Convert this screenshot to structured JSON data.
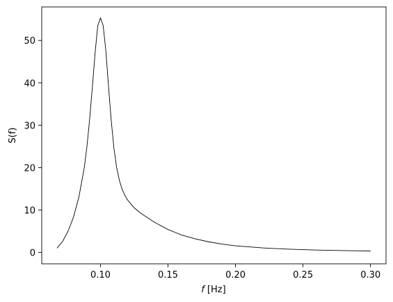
{
  "chart_data": {
    "type": "line",
    "title": "",
    "xlabel_var": "f",
    "xlabel_unit": "[Hz]",
    "ylabel_var": "S(f)",
    "xlim": [
      0.0565,
      0.3115
    ],
    "ylim": [
      -2.7,
      57.9
    ],
    "xticks": [
      0.1,
      0.15,
      0.2,
      0.25,
      0.3
    ],
    "xtick_labels": [
      "0.10",
      "0.15",
      "0.20",
      "0.25",
      "0.30"
    ],
    "yticks": [
      0,
      10,
      20,
      30,
      40,
      50
    ],
    "ytick_labels": [
      "0",
      "10",
      "20",
      "30",
      "40",
      "50"
    ],
    "grid": false,
    "legend": "none",
    "line_color": "#000000",
    "series": [
      {
        "x": [
          0.0678,
          0.072,
          0.076,
          0.08,
          0.084,
          0.088,
          0.09,
          0.092,
          0.094,
          0.096,
          0.098,
          0.1,
          0.102,
          0.104,
          0.106,
          0.108,
          0.11,
          0.112,
          0.114,
          0.116,
          0.118,
          0.12,
          0.125,
          0.13,
          0.14,
          0.15,
          0.16,
          0.17,
          0.18,
          0.19,
          0.2,
          0.22,
          0.24,
          0.26,
          0.28,
          0.3
        ],
        "y": [
          1.0,
          2.6,
          5.0,
          8.3,
          13.0,
          20.0,
          25.0,
          31.5,
          39.0,
          47.0,
          53.5,
          55.3,
          53.5,
          47.5,
          39.0,
          31.0,
          24.5,
          20.0,
          17.0,
          14.9,
          13.5,
          12.4,
          10.5,
          9.2,
          7.1,
          5.4,
          4.1,
          3.2,
          2.5,
          1.95,
          1.55,
          1.05,
          0.75,
          0.55,
          0.42,
          0.33
        ]
      }
    ]
  }
}
